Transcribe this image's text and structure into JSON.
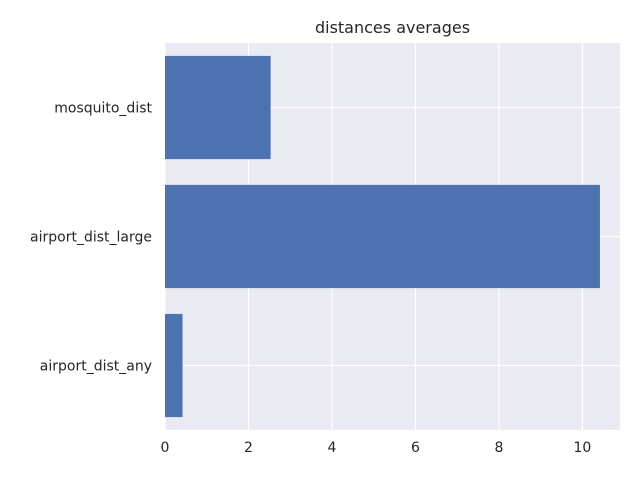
{
  "chart_data": {
    "type": "bar",
    "orientation": "horizontal",
    "title": "distances averages",
    "xlabel": "",
    "ylabel": "",
    "categories": [
      "airport_dist_any",
      "airport_dist_large",
      "mosquito_dist"
    ],
    "values": [
      0.42,
      10.42,
      2.53
    ],
    "xlim": [
      0,
      10.9
    ],
    "xticks": [
      0,
      2,
      4,
      6,
      8,
      10
    ],
    "grid": true,
    "background_color": "#EAEAF2",
    "bar_color": "#4C72B0",
    "grid_color": "#FFFFFF",
    "text_color": "#262626"
  }
}
